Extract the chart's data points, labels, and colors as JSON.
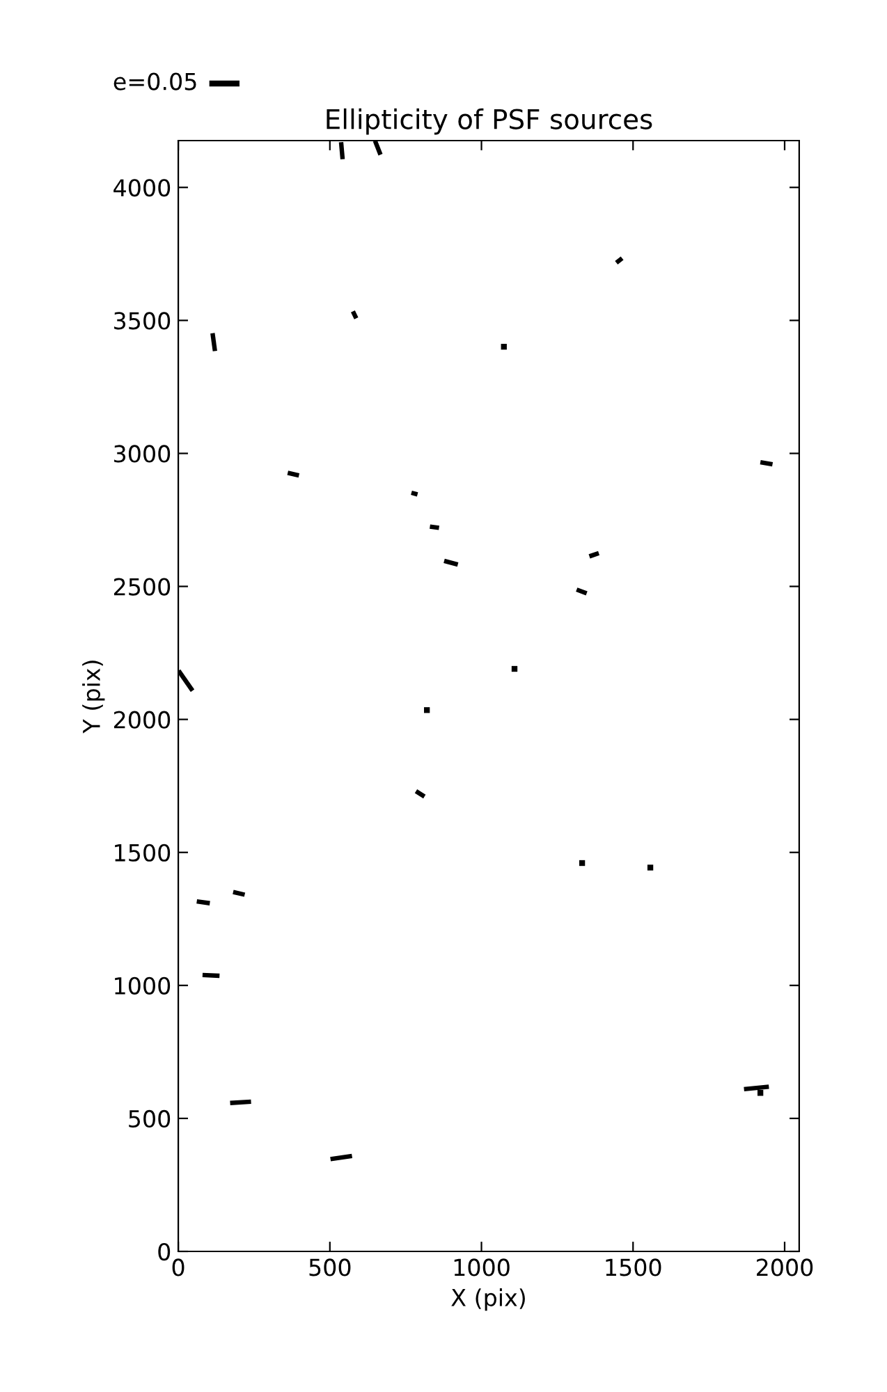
{
  "chart_data": {
    "type": "line",
    "title": "Ellipticity of PSF sources",
    "xlabel": "X (pix)",
    "ylabel": "Y (pix)",
    "annotations": [
      "e=0.05"
    ],
    "xlim": [
      0,
      2048
    ],
    "ylim": [
      0,
      4176
    ],
    "xticks": [
      0,
      500,
      1000,
      1500,
      2000
    ],
    "yticks": [
      0,
      500,
      1000,
      1500,
      2000,
      2500,
      3000,
      3500,
      4000
    ],
    "grid": false,
    "marker": "none",
    "line_style": "solid",
    "series": [
      {
        "color": "#000000",
        "x": [
          537,
          542
        ],
        "values": [
          4170,
          4106
        ]
      },
      {
        "color": "#000000",
        "x": [
          649,
          667
        ],
        "values": [
          4175,
          4123
        ]
      },
      {
        "color": "#000000",
        "x": [
          1445,
          1464
        ],
        "values": [
          3717,
          3734
        ]
      },
      {
        "color": "#000000",
        "x": [
          576,
          587
        ],
        "values": [
          3534,
          3508
        ]
      },
      {
        "color": "#000000",
        "x": [
          113,
          121
        ],
        "values": [
          3452,
          3385
        ]
      },
      {
        "type": "scatter",
        "marker": "square",
        "color": "#000000",
        "x": [
          1074
        ],
        "values": [
          3401
        ]
      },
      {
        "color": "#000000",
        "x": [
          1920,
          1960
        ],
        "values": [
          2967,
          2959
        ]
      },
      {
        "color": "#000000",
        "x": [
          361,
          398
        ],
        "values": [
          2927,
          2917
        ]
      },
      {
        "color": "#000000",
        "x": [
          769,
          789
        ],
        "values": [
          2852,
          2846
        ]
      },
      {
        "color": "#000000",
        "x": [
          830,
          860
        ],
        "values": [
          2725,
          2720
        ]
      },
      {
        "color": "#000000",
        "x": [
          877,
          922
        ],
        "values": [
          2596,
          2582
        ]
      },
      {
        "color": "#000000",
        "x": [
          1356,
          1387
        ],
        "values": [
          2613,
          2625
        ]
      },
      {
        "color": "#000000",
        "x": [
          1314,
          1347
        ],
        "values": [
          2488,
          2474
        ]
      },
      {
        "color": "#000000",
        "x": [
          1,
          47
        ],
        "values": [
          2183,
          2108
        ]
      },
      {
        "type": "scatter",
        "marker": "square",
        "color": "#000000",
        "x": [
          1109
        ],
        "values": [
          2190
        ]
      },
      {
        "type": "scatter",
        "marker": "square",
        "color": "#000000",
        "x": [
          820
        ],
        "values": [
          2035
        ]
      },
      {
        "color": "#000000",
        "x": [
          784,
          812
        ],
        "values": [
          1730,
          1710
        ]
      },
      {
        "type": "scatter",
        "marker": "square",
        "color": "#000000",
        "x": [
          1332
        ],
        "values": [
          1460
        ]
      },
      {
        "type": "scatter",
        "marker": "square",
        "color": "#000000",
        "x": [
          1557
        ],
        "values": [
          1443
        ]
      },
      {
        "color": "#000000",
        "x": [
          61,
          104
        ],
        "values": [
          1316,
          1309
        ]
      },
      {
        "color": "#000000",
        "x": [
          181,
          219
        ],
        "values": [
          1351,
          1341
        ]
      },
      {
        "color": "#000000",
        "x": [
          80,
          136
        ],
        "values": [
          1039,
          1036
        ]
      },
      {
        "color": "#000000",
        "x": [
          171,
          240
        ],
        "values": [
          558,
          563
        ]
      },
      {
        "color": "#000000",
        "x": [
          502,
          573
        ],
        "values": [
          347,
          359
        ]
      },
      {
        "color": "#000000",
        "x": [
          1866,
          1948
        ],
        "values": [
          610,
          619
        ]
      },
      {
        "type": "scatter",
        "marker": "square",
        "color": "#000000",
        "x": [
          1920
        ],
        "values": [
          596
        ]
      }
    ]
  }
}
